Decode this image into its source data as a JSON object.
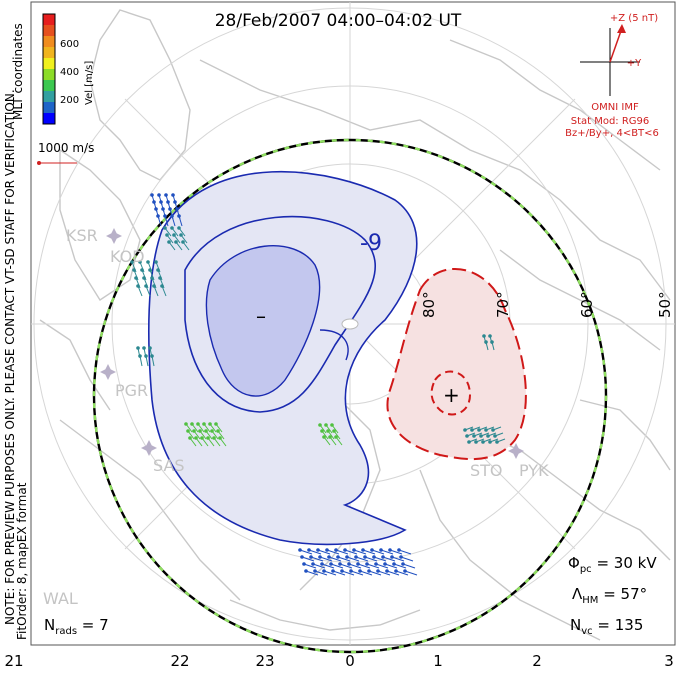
{
  "title": "28/Feb/2007 04:00–04:02 UT",
  "coords_label": "MLT coordinates",
  "colorbar": {
    "label": "Vel [m/s]",
    "ticks": [
      "600",
      "400",
      "200"
    ],
    "colors": [
      "#0000ff",
      "#1e64c8",
      "#32a0a0",
      "#3cc850",
      "#8cdc28",
      "#f0f01e",
      "#f0b41e",
      "#f08c1e",
      "#e6501e",
      "#e61e1e"
    ]
  },
  "scale_label": "1000 m/s",
  "watermark": "NOTE: FOR PREVIEW PURPOSES ONLY. PLEASE CONTACT VT-SD STAFF FOR VERIFICATION.",
  "fit_info": "FitOrder: 8, mapEX format",
  "imf": {
    "z_label": "+Z (5 nT)",
    "y_label": "+Y",
    "source": "OMNI IMF",
    "model": "Stat Mod: RG96",
    "condition": "Bz+/By+, 4<BT<6"
  },
  "stats": {
    "phi_pc": "Φ",
    "phi_sub": "pc",
    "phi_val": " = 30 kV",
    "lambda": "Λ",
    "lambda_sub": "HM",
    "lambda_val": " = 57°",
    "nvc": "N",
    "nvc_sub": "vc",
    "nvc_val": " = 135",
    "nrads": "N",
    "nrads_sub": "rads",
    "nrads_val": " = 7"
  },
  "mlt_ticks": [
    "21",
    "22",
    "23",
    "0",
    "1",
    "2",
    "3"
  ],
  "lat_labels": [
    "80°",
    "70°",
    "60°",
    "50°"
  ],
  "stations": [
    "KSR",
    "KOD",
    "PGR",
    "SAS",
    "STO",
    "PYK",
    "WAL"
  ],
  "contour_labels": {
    "neg_value": "-9",
    "neg_center": "–",
    "pos_center": "+"
  },
  "colors": {
    "negative": "#1a2ab0",
    "positive": "#d01818",
    "coast": "#c8c8c8",
    "grid": "#d6d6d6",
    "hmb": "#90e060"
  }
}
